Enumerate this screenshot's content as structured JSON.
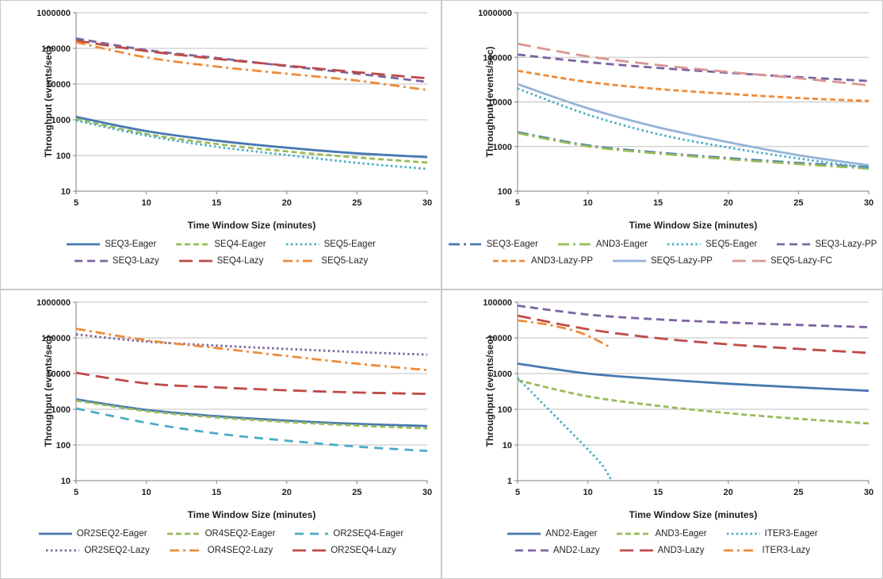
{
  "shared": {
    "ylabel": "Throughput (events/sec)",
    "xlabel": "Time Window Size (minutes)",
    "x_ticks": [
      5,
      10,
      15,
      20,
      25,
      30
    ],
    "x_range": [
      5,
      30
    ],
    "grid_color": "#bfbfbf",
    "axis_color": "#7f7f7f",
    "tick_text_color": "#1f1f1f",
    "legend_text_color": "#262626"
  },
  "chart_data": [
    {
      "id": "seq",
      "position": "top-left",
      "type": "line",
      "yscale": "log",
      "ylim": [
        10,
        1000000
      ],
      "y_tick_labels": [
        "10",
        "100",
        "1000",
        "10000",
        "100000",
        "1000000"
      ],
      "x": [
        5,
        10,
        15,
        20,
        25,
        30
      ],
      "series": [
        {
          "name": "SEQ3-Eager",
          "color": "#4779b1",
          "dash": "solid",
          "values": [
            1200,
            480,
            260,
            165,
            115,
            90
          ]
        },
        {
          "name": "SEQ4-Eager",
          "color": "#9bbb59",
          "dash": "dash",
          "values": [
            1050,
            400,
            210,
            130,
            88,
            63
          ]
        },
        {
          "name": "SEQ5-Eager",
          "color": "#4bacc6",
          "dash": "dot",
          "values": [
            950,
            360,
            175,
            103,
            62,
            42
          ]
        },
        {
          "name": "SEQ3-Lazy",
          "color": "#7c64a0",
          "dash": "med-dash",
          "values": [
            190000,
            90000,
            54000,
            32000,
            19500,
            11500
          ]
        },
        {
          "name": "SEQ4-Lazy",
          "color": "#be4b48",
          "dash": "long-dash",
          "values": [
            165000,
            84000,
            51000,
            33000,
            21500,
            14500
          ]
        },
        {
          "name": "SEQ5-Lazy",
          "color": "#ee8b38",
          "dash": "dash-dot",
          "values": [
            148000,
            56000,
            31000,
            19500,
            12500,
            6800
          ]
        }
      ],
      "legend_rows": [
        [
          "SEQ3-Eager",
          "SEQ4-Eager",
          "SEQ5-Eager"
        ],
        [
          "SEQ3-Lazy",
          "SEQ4-Lazy",
          "SEQ5-Lazy"
        ]
      ]
    },
    {
      "id": "seq-and",
      "position": "top-right",
      "type": "line",
      "yscale": "log",
      "ylim": [
        100,
        1000000
      ],
      "y_tick_labels": [
        "100",
        "1000",
        "10000",
        "100000",
        "1000000"
      ],
      "x": [
        5,
        10,
        15,
        20,
        25,
        30
      ],
      "series": [
        {
          "name": "SEQ3-Eager",
          "color": "#4779b1",
          "dash": "ldash-dot",
          "values": [
            2100,
            1060,
            730,
            550,
            430,
            345
          ]
        },
        {
          "name": "AND3-Eager",
          "color": "#9bbb59",
          "dash": "ldash-dot",
          "values": [
            2000,
            1010,
            700,
            520,
            405,
            320
          ]
        },
        {
          "name": "SEQ5-Eager",
          "color": "#4bacc6",
          "dash": "dot",
          "values": [
            20000,
            5200,
            1900,
            950,
            540,
            330
          ]
        },
        {
          "name": "SEQ3-Lazy-PP",
          "color": "#7c64a0",
          "dash": "med-dash",
          "values": [
            115000,
            78000,
            58000,
            45000,
            36000,
            29500
          ]
        },
        {
          "name": "AND3-Lazy-PP",
          "color": "#ee8b38",
          "dash": "dash",
          "values": [
            50000,
            28000,
            19500,
            15200,
            12200,
            10500
          ]
        },
        {
          "name": "SEQ5-Lazy-PP",
          "color": "#95b3d7",
          "dash": "solid",
          "values": [
            25000,
            7200,
            2700,
            1250,
            640,
            380
          ]
        },
        {
          "name": "SEQ5-Lazy-FC",
          "color": "#d99694",
          "dash": "long-dash",
          "values": [
            200000,
            105000,
            67000,
            47000,
            34000,
            23500
          ]
        }
      ],
      "legend_rows": [
        [
          "SEQ3-Eager",
          "AND3-Eager",
          "SEQ5-Eager",
          "SEQ3-Lazy-PP"
        ],
        [
          "AND3-Lazy-PP",
          "SEQ5-Lazy-PP",
          "SEQ5-Lazy-FC"
        ]
      ]
    },
    {
      "id": "or",
      "position": "bottom-left",
      "type": "line",
      "yscale": "log",
      "ylim": [
        10,
        1000000
      ],
      "y_tick_labels": [
        "10",
        "100",
        "1000",
        "10000",
        "100000",
        "1000000"
      ],
      "x": [
        5,
        10,
        15,
        20,
        25,
        30
      ],
      "series": [
        {
          "name": "OR2SEQ2-Eager",
          "color": "#4779b1",
          "dash": "solid",
          "values": [
            1900,
            960,
            640,
            480,
            390,
            340
          ]
        },
        {
          "name": "OR4SEQ2-Eager",
          "color": "#9bbb59",
          "dash": "dash",
          "values": [
            1750,
            890,
            590,
            440,
            350,
            290
          ]
        },
        {
          "name": "OR2SEQ4-Eager",
          "color": "#4bacc6",
          "dash": "wide-dash",
          "values": [
            1050,
            420,
            210,
            132,
            90,
            68
          ]
        },
        {
          "name": "OR2SEQ2-Lazy",
          "color": "#7c64a0",
          "dash": "dot",
          "values": [
            125000,
            79000,
            61000,
            49000,
            40000,
            34000
          ]
        },
        {
          "name": "OR4SEQ2-Lazy",
          "color": "#ee8b38",
          "dash": "dash-dot",
          "values": [
            180000,
            86000,
            52000,
            31000,
            19000,
            12500
          ]
        },
        {
          "name": "OR2SEQ4-Lazy",
          "color": "#be4b48",
          "dash": "long-dash",
          "values": [
            10500,
            5300,
            4100,
            3400,
            2950,
            2700
          ]
        }
      ],
      "legend_rows": [
        [
          "OR2SEQ2-Eager",
          "OR4SEQ2-Eager",
          "OR2SEQ4-Eager"
        ],
        [
          "OR2SEQ2-Lazy",
          "OR4SEQ2-Lazy",
          "OR2SEQ4-Lazy"
        ]
      ]
    },
    {
      "id": "and-iter",
      "position": "bottom-right",
      "type": "line",
      "yscale": "log",
      "ylim": [
        1,
        100000
      ],
      "y_tick_labels": [
        "1",
        "10",
        "100",
        "1000",
        "10000",
        "100000"
      ],
      "x": [
        5,
        10,
        15,
        20,
        25,
        30
      ],
      "series": [
        {
          "name": "AND2-Eager",
          "color": "#4779b1",
          "dash": "solid",
          "values": [
            1900,
            1000,
            700,
            520,
            410,
            330
          ]
        },
        {
          "name": "AND3-Eager",
          "color": "#9bbb59",
          "dash": "dash",
          "values": [
            650,
            230,
            125,
            78,
            54,
            40
          ]
        },
        {
          "name": "ITER3-Eager",
          "color": "#4bacc6",
          "dash": "dot",
          "x": [
            5,
            6,
            7,
            8,
            9,
            10,
            11,
            11.7
          ],
          "values": [
            750,
            300,
            120,
            48,
            19,
            7.5,
            2.8,
            1
          ]
        },
        {
          "name": "AND2-Lazy",
          "color": "#7c64a0",
          "dash": "med-dash",
          "values": [
            80000,
            45000,
            33000,
            27000,
            23000,
            20000
          ]
        },
        {
          "name": "AND3-Lazy",
          "color": "#be4b48",
          "dash": "long-dash",
          "values": [
            42000,
            17500,
            9800,
            6600,
            4900,
            3800
          ]
        },
        {
          "name": "ITER3-Lazy",
          "color": "#ee8b38",
          "dash": "dash-dot",
          "x": [
            5,
            6,
            7,
            8,
            9,
            10,
            11,
            11.6
          ],
          "values": [
            31000,
            27500,
            24000,
            20000,
            16000,
            11500,
            7300,
            5400
          ]
        }
      ],
      "legend_rows": [
        [
          "AND2-Eager",
          "AND3-Eager",
          "ITER3-Eager"
        ],
        [
          "AND2-Lazy",
          "AND3-Lazy",
          "ITER3-Lazy"
        ]
      ]
    }
  ]
}
